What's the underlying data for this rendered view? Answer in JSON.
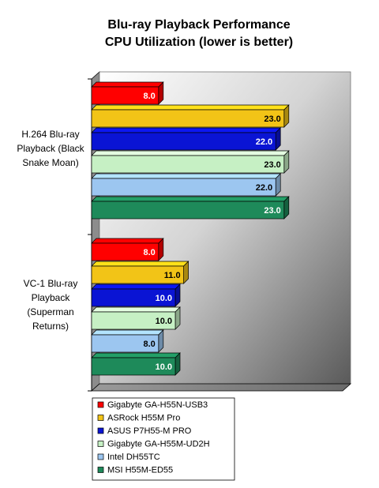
{
  "chart_data": {
    "type": "bar",
    "orientation": "horizontal",
    "title_lines": [
      "Blu-ray Playback Performance",
      "CPU Utilization (lower is better)"
    ],
    "xlabel": "",
    "ylabel": "",
    "xlim": [
      0,
      30
    ],
    "grid": false,
    "legend_position": "bottom",
    "categories": [
      [
        "H.264 Blu-ray",
        "Playback (Black",
        "Snake Moan)"
      ],
      [
        "VC-1 Blu-ray",
        "Playback",
        "(Superman",
        "Returns)"
      ]
    ],
    "series": [
      {
        "name": "Gigabyte GA-H55N-USB3",
        "color": "#ff0000",
        "label_color": "#ffffff",
        "values": [
          8.0,
          8.0
        ]
      },
      {
        "name": "ASRock H55M Pro",
        "color": "#f2c417",
        "label_color": "#000000",
        "values": [
          23.0,
          11.0
        ]
      },
      {
        "name": "ASUS P7H55-M PRO",
        "color": "#0a14d4",
        "label_color": "#ffffff",
        "values": [
          22.0,
          10.0
        ]
      },
      {
        "name": "Gigabyte GA-H55M-UD2H",
        "color": "#c6f0c4",
        "label_color": "#000000",
        "values": [
          23.0,
          10.0
        ]
      },
      {
        "name": "Intel DH55TC",
        "color": "#9cc6f0",
        "label_color": "#000000",
        "values": [
          22.0,
          8.0
        ]
      },
      {
        "name": "MSI H55M-ED55",
        "color": "#1e8a5a",
        "label_color": "#ffffff",
        "values": [
          23.0,
          10.0
        ]
      }
    ]
  }
}
